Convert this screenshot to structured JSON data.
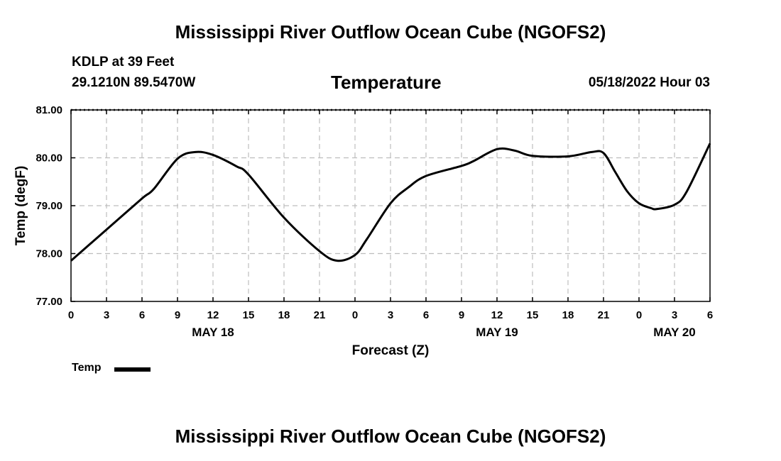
{
  "header": {
    "main_title": "Mississippi River Outflow Ocean Cube (NGOFS2)",
    "station": "KDLP at 39 Feet",
    "coords": "29.1210N  89.5470W",
    "plot_title": "Temperature",
    "run_time": "05/18/2022 Hour 03"
  },
  "legend": {
    "label": "Temp"
  },
  "footer": {
    "main_title": "Mississippi River Outflow Ocean Cube (NGOFS2)"
  },
  "chart_data": {
    "type": "line",
    "title": "Temperature",
    "xlabel": "Forecast (Z)",
    "ylabel": "Temp (degF)",
    "xlim": [
      0,
      54
    ],
    "ylim": [
      77,
      81
    ],
    "grid": true,
    "legend_position": "bottom-left",
    "x_ticks": [
      0,
      3,
      6,
      9,
      12,
      15,
      18,
      21,
      24,
      27,
      30,
      33,
      36,
      39,
      42,
      45,
      48,
      51,
      54
    ],
    "x_tick_labels": [
      "0",
      "3",
      "6",
      "9",
      "12",
      "15",
      "18",
      "21",
      "0",
      "3",
      "6",
      "9",
      "12",
      "15",
      "18",
      "21",
      "0",
      "3",
      "6"
    ],
    "y_ticks": [
      77,
      78,
      79,
      80,
      81
    ],
    "y_tick_labels": [
      "77.00",
      "78.00",
      "79.00",
      "80.00",
      "81.00"
    ],
    "date_labels": [
      {
        "x": 12,
        "label": "MAY 18"
      },
      {
        "x": 36,
        "label": "MAY 19"
      },
      {
        "x": 51,
        "label": "MAY 20"
      }
    ],
    "series": [
      {
        "name": "Temp",
        "x": [
          0,
          3,
          6,
          7,
          9,
          10.5,
          12,
          14,
          15,
          18,
          21,
          22.5,
          24,
          25,
          27,
          28.5,
          30,
          33,
          34,
          36,
          37.5,
          39,
          42,
          44,
          45,
          46,
          47,
          48,
          49,
          49.5,
          51,
          52,
          54
        ],
        "values": [
          77.85,
          78.5,
          79.15,
          79.35,
          79.98,
          80.12,
          80.06,
          79.82,
          79.65,
          78.75,
          78.05,
          77.85,
          77.97,
          78.3,
          79.05,
          79.38,
          79.62,
          79.83,
          79.93,
          80.18,
          80.15,
          80.04,
          80.03,
          80.12,
          80.1,
          79.7,
          79.3,
          79.05,
          78.95,
          78.93,
          79.02,
          79.28,
          80.3
        ]
      }
    ]
  }
}
